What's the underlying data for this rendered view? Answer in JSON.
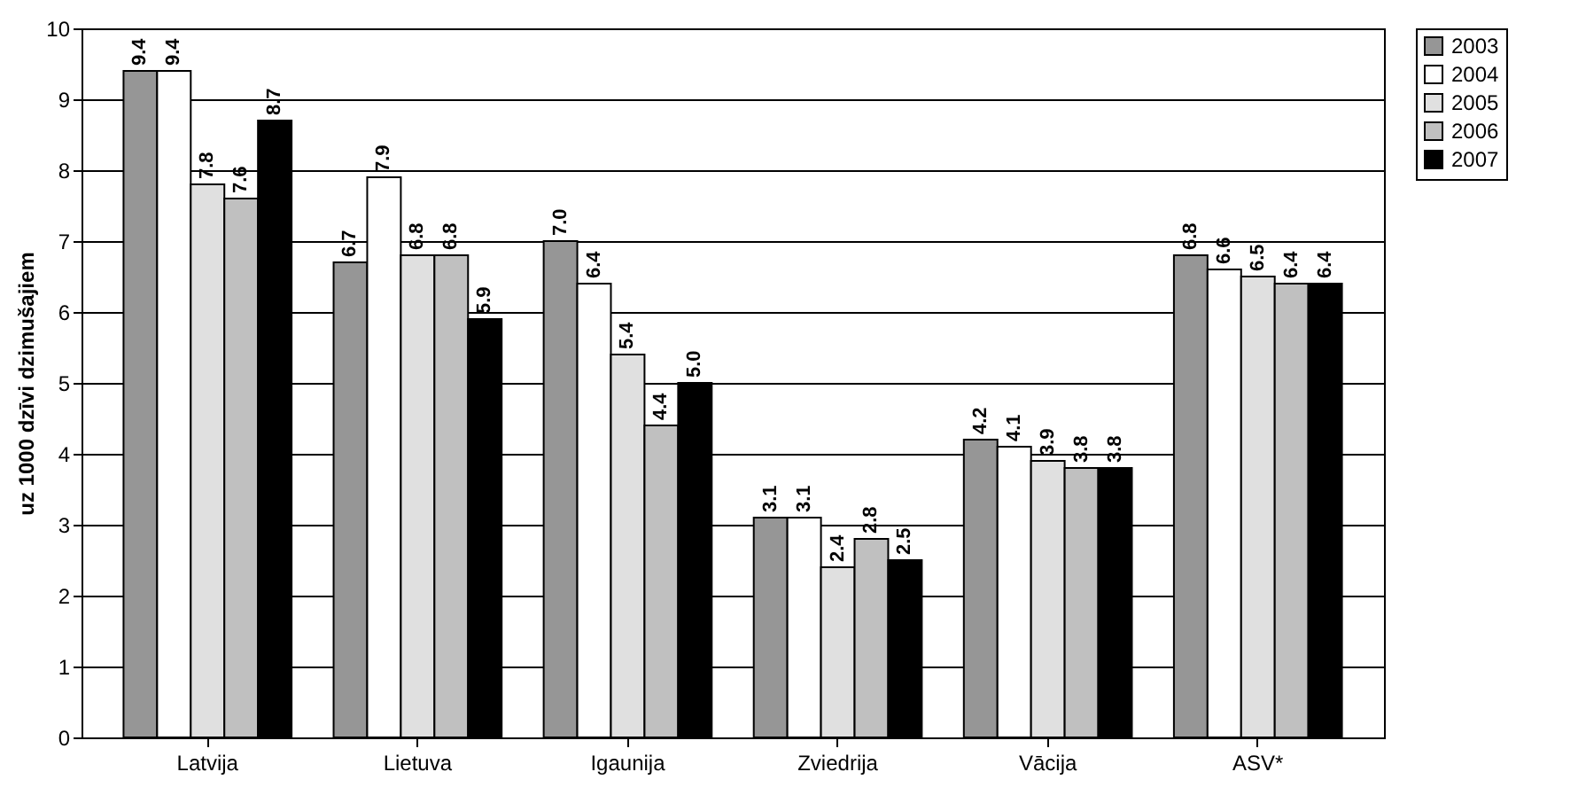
{
  "chart_data": {
    "type": "bar",
    "ylabel": "uz 1000 dzīvi dzimušajiem",
    "categories": [
      "Latvija",
      "Lietuva",
      "Igaunija",
      "Zviedrija",
      "Vācija",
      "ASV*"
    ],
    "series": [
      {
        "name": "2003",
        "color": "#969696",
        "values": [
          9.4,
          6.7,
          7.0,
          3.1,
          4.2,
          6.8
        ],
        "value_labels": [
          "9.4",
          "6.7",
          "7.0",
          "3.1",
          "4.2",
          "6.8"
        ]
      },
      {
        "name": "2004",
        "color": "#ffffff",
        "values": [
          9.4,
          7.9,
          6.4,
          3.1,
          4.1,
          6.6
        ],
        "value_labels": [
          "9.4",
          "7.9",
          "6.4",
          "3.1",
          "4.1",
          "6.6"
        ]
      },
      {
        "name": "2005",
        "color": "#e0e0e0",
        "values": [
          7.8,
          6.8,
          5.4,
          2.4,
          3.9,
          6.5
        ],
        "value_labels": [
          "7.8",
          "6.8",
          "5.4",
          "2.4",
          "3.9",
          "6.5"
        ]
      },
      {
        "name": "2006",
        "color": "#c0c0c0",
        "values": [
          7.6,
          6.8,
          4.4,
          2.8,
          3.8,
          6.4
        ],
        "value_labels": [
          "7.6",
          "6.8",
          "4.4",
          "2.8",
          "3.8",
          "6.4"
        ]
      },
      {
        "name": "2007",
        "color": "#000000",
        "values": [
          8.7,
          5.9,
          5.0,
          2.5,
          3.8,
          6.4
        ],
        "value_labels": [
          "8.7",
          "5.9",
          "5.0",
          "2.5",
          "3.8",
          "6.4"
        ]
      }
    ],
    "ylim": [
      0,
      10
    ],
    "yticks": [
      0,
      1,
      2,
      3,
      4,
      5,
      6,
      7,
      8,
      9,
      10
    ],
    "grid": "y",
    "legend": "right",
    "data_labels": true
  }
}
